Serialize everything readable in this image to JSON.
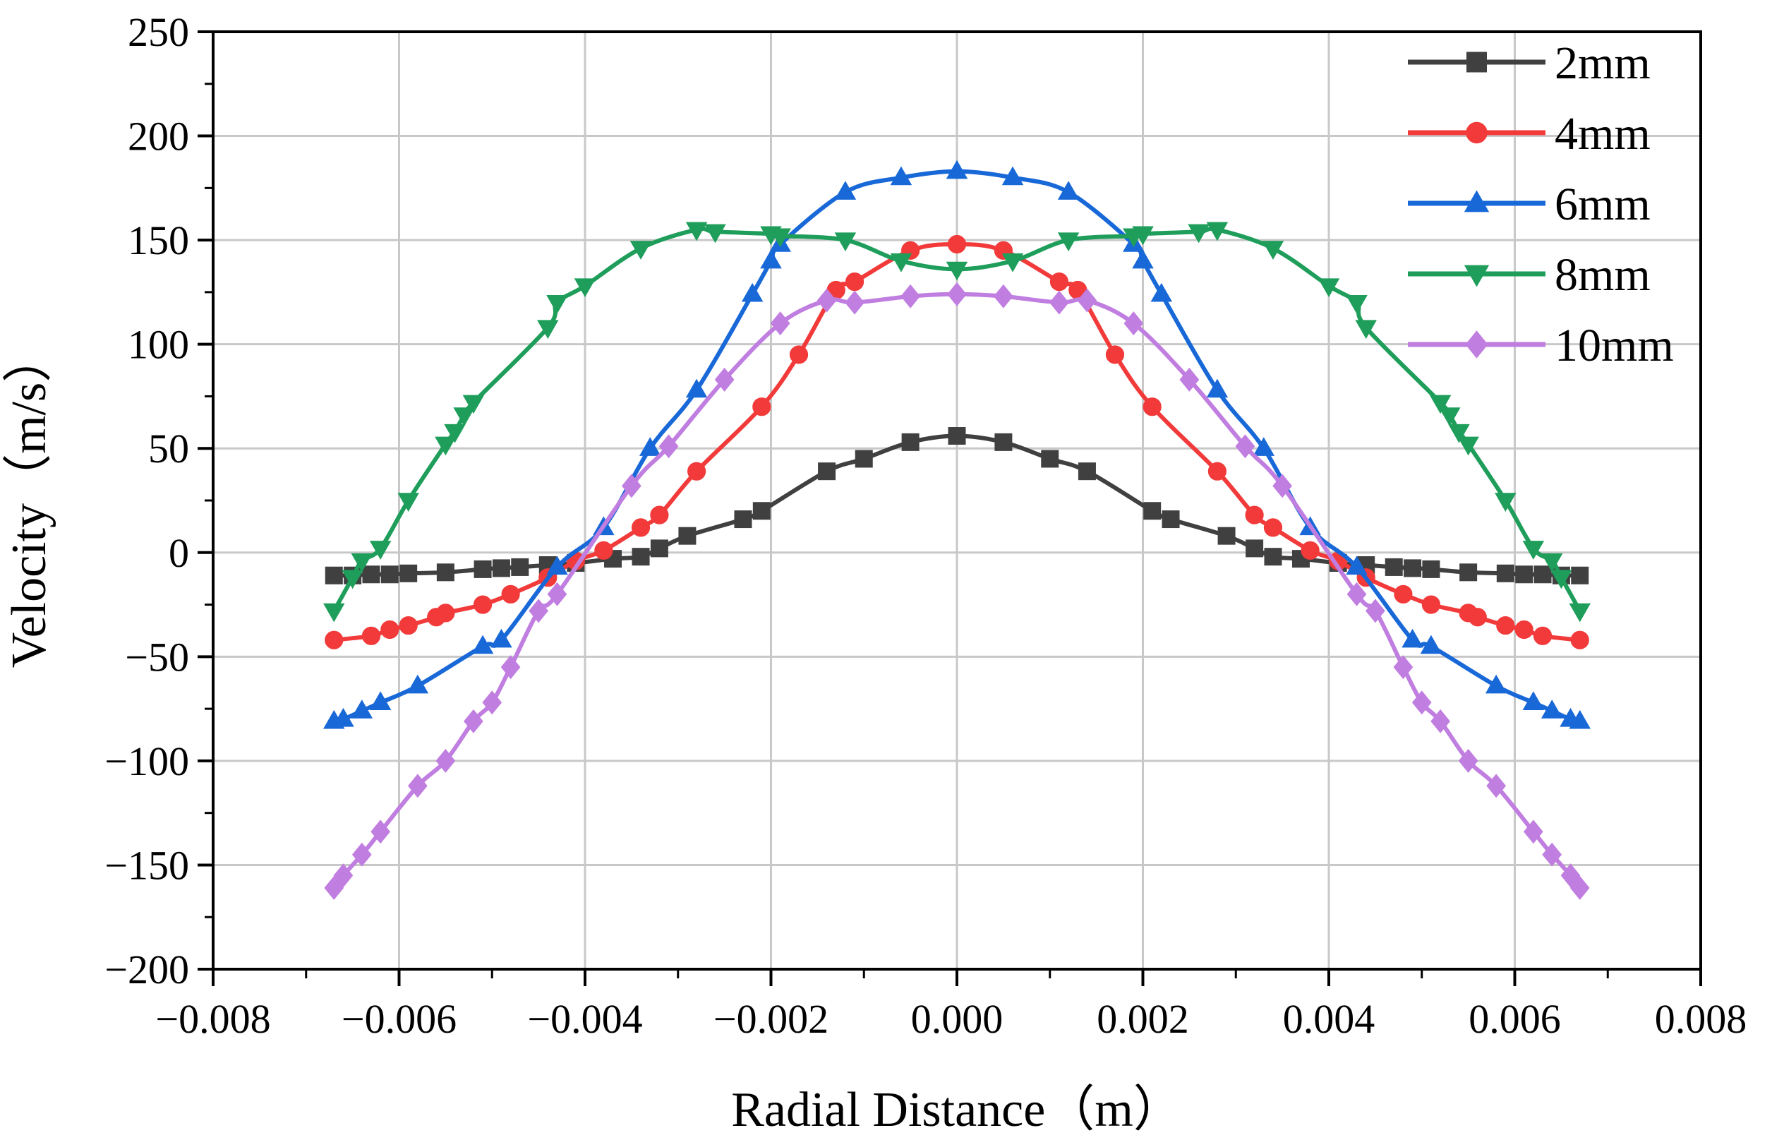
{
  "chart_data": {
    "type": "line",
    "title": "",
    "xlabel": "Radial Distance（m）",
    "ylabel": "Velocity（m/s）",
    "xlim": [
      -0.008,
      0.008
    ],
    "ylim": [
      -200,
      250
    ],
    "grid": true,
    "legend_position": "top-right",
    "xticks": [
      -0.008,
      -0.006,
      -0.004,
      -0.002,
      0.0,
      0.002,
      0.004,
      0.006,
      0.008
    ],
    "xtick_labels": [
      "−0.008",
      "−0.006",
      "−0.004",
      "−0.002",
      "0.000",
      "0.002",
      "0.004",
      "0.006",
      "0.008"
    ],
    "yticks": [
      -200,
      -150,
      -100,
      -50,
      0,
      50,
      100,
      150,
      200,
      250
    ],
    "ytick_labels": [
      "−200",
      "−150",
      "−100",
      "−50",
      "0",
      "50",
      "100",
      "150",
      "200",
      "250"
    ],
    "series": [
      {
        "name": "2mm",
        "color": "#404040",
        "marker": "square",
        "x": [
          -0.0067,
          -0.0065,
          -0.0063,
          -0.0061,
          -0.0059,
          -0.0055,
          -0.0051,
          -0.0049,
          -0.0047,
          -0.0044,
          -0.0041,
          -0.0037,
          -0.0034,
          -0.0032,
          -0.0029,
          -0.0023,
          -0.0021,
          -0.0014,
          -0.001,
          -0.0005,
          0.0,
          0.0005,
          0.001,
          0.0014,
          0.0021,
          0.0023,
          0.0029,
          0.0032,
          0.0034,
          0.0037,
          0.0041,
          0.0044,
          0.0047,
          0.0049,
          0.0051,
          0.0055,
          0.0059,
          0.0061,
          0.0063,
          0.0065,
          0.0067
        ],
        "y": [
          -11,
          -11,
          -10.5,
          -10.5,
          -10,
          -9.5,
          -8,
          -7.5,
          -7,
          -6,
          -5,
          -3,
          -2,
          2,
          8,
          16,
          20,
          39,
          45,
          53,
          56,
          53,
          45,
          39,
          20,
          16,
          8,
          2,
          -2,
          -3,
          -5,
          -6,
          -7,
          -7.5,
          -8,
          -9.5,
          -10,
          -10.5,
          -10.5,
          -11,
          -11
        ]
      },
      {
        "name": "4mm",
        "color": "#f23a3a",
        "marker": "circle",
        "x": [
          -0.0067,
          -0.0063,
          -0.0061,
          -0.0059,
          -0.0056,
          -0.0055,
          -0.0051,
          -0.0048,
          -0.0044,
          -0.0041,
          -0.0038,
          -0.0034,
          -0.0032,
          -0.0028,
          -0.0021,
          -0.0017,
          -0.0013,
          -0.0011,
          -0.0005,
          0.0,
          0.0005,
          0.0011,
          0.0013,
          0.0017,
          0.0021,
          0.0028,
          0.0032,
          0.0034,
          0.0038,
          0.0041,
          0.0044,
          0.0048,
          0.0051,
          0.0055,
          0.0056,
          0.0059,
          0.0061,
          0.0063,
          0.0067
        ],
        "y": [
          -42,
          -40,
          -37,
          -35,
          -31,
          -29,
          -25,
          -20,
          -12,
          -4,
          1,
          12,
          18,
          39,
          70,
          95,
          126,
          130,
          145,
          148,
          145,
          130,
          126,
          95,
          70,
          39,
          18,
          12,
          1,
          -4,
          -12,
          -20,
          -25,
          -29,
          -31,
          -35,
          -37,
          -40,
          -42
        ]
      },
      {
        "name": "6mm",
        "color": "#1868d8",
        "marker": "triangle-up",
        "x": [
          -0.0067,
          -0.0066,
          -0.0064,
          -0.0062,
          -0.0058,
          -0.0051,
          -0.0049,
          -0.0043,
          -0.0038,
          -0.0033,
          -0.0028,
          -0.0022,
          -0.002,
          -0.0019,
          -0.0012,
          -0.0006,
          0.0,
          0.0006,
          0.0012,
          0.0019,
          0.002,
          0.0022,
          0.0028,
          0.0033,
          0.0038,
          0.0043,
          0.0049,
          0.0051,
          0.0058,
          0.0062,
          0.0064,
          0.0066,
          0.0067
        ],
        "y": [
          -81,
          -80,
          -76,
          -72,
          -64,
          -45,
          -42,
          -7,
          12,
          50,
          78,
          124,
          140,
          148,
          173,
          180,
          183,
          180,
          173,
          148,
          140,
          124,
          78,
          50,
          12,
          -7,
          -42,
          -45,
          -64,
          -72,
          -76,
          -80,
          -81
        ]
      },
      {
        "name": "8mm",
        "color": "#1e9e5a",
        "marker": "triangle-down",
        "x": [
          -0.0067,
          -0.0065,
          -0.0064,
          -0.0062,
          -0.0059,
          -0.0055,
          -0.0054,
          -0.0053,
          -0.0052,
          -0.0044,
          -0.0043,
          -0.004,
          -0.0034,
          -0.0028,
          -0.0026,
          -0.002,
          -0.0019,
          -0.0012,
          -0.0006,
          0.0,
          0.0006,
          0.0012,
          0.0019,
          0.002,
          0.0026,
          0.0028,
          0.0034,
          0.004,
          0.0043,
          0.0044,
          0.0052,
          0.0053,
          0.0054,
          0.0055,
          0.0059,
          0.0062,
          0.0064,
          0.0065,
          0.0067
        ],
        "y": [
          -28,
          -12,
          -4,
          2,
          25,
          52,
          58,
          66,
          72,
          108,
          120,
          128,
          146,
          155,
          154,
          153,
          152,
          150,
          140,
          136,
          140,
          150,
          152,
          153,
          154,
          155,
          146,
          128,
          120,
          108,
          72,
          66,
          58,
          52,
          25,
          2,
          -4,
          -12,
          -28
        ]
      },
      {
        "name": "10mm",
        "color": "#c07ee0",
        "marker": "diamond",
        "x": [
          -0.0067,
          -0.0066,
          -0.0064,
          -0.0062,
          -0.0058,
          -0.0055,
          -0.0052,
          -0.005,
          -0.0048,
          -0.0045,
          -0.0043,
          -0.0035,
          -0.0031,
          -0.0025,
          -0.0019,
          -0.0014,
          -0.0011,
          -0.0005,
          0.0,
          0.0005,
          0.0011,
          0.0014,
          0.0019,
          0.0025,
          0.0031,
          0.0035,
          0.0043,
          0.0045,
          0.0048,
          0.005,
          0.0052,
          0.0055,
          0.0058,
          0.0062,
          0.0064,
          0.0066,
          0.0067
        ],
        "y": [
          -161,
          -155,
          -145,
          -134,
          -112,
          -100,
          -81,
          -72,
          -55,
          -28,
          -20,
          32,
          51,
          83,
          110,
          121,
          120,
          123,
          124,
          123,
          120,
          121,
          110,
          83,
          51,
          32,
          -20,
          -28,
          -55,
          -72,
          -81,
          -100,
          -112,
          -134,
          -145,
          -155,
          -161
        ]
      }
    ]
  }
}
